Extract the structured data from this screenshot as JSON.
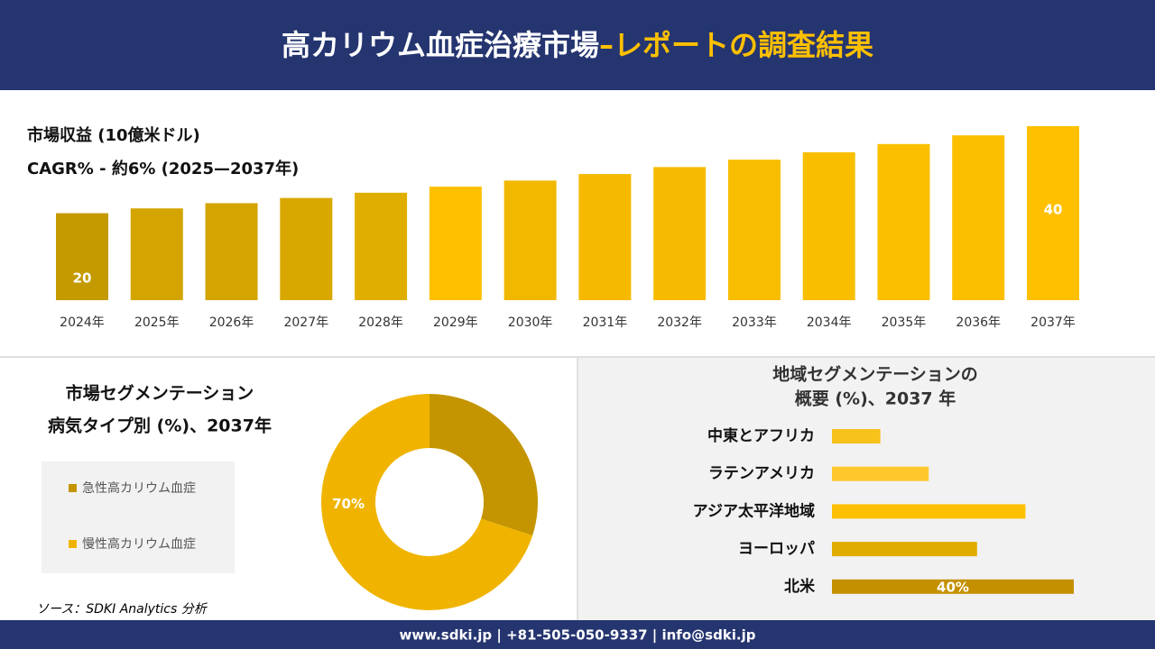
{
  "header": {
    "title_main": "高カリウム血症治療市場",
    "title_accent": "–レポートの調査結果"
  },
  "footer": "www.sdki.jp | +81-505-050-9337 | info@sdki.jp",
  "source": "ソース：SDKI Analytics 分析",
  "chart_data": [
    {
      "type": "bar",
      "title": "市場収益 (10億米ドル)",
      "subtitle": "CAGR% - 約6% (2025—2037年)",
      "categories": [
        "2024年",
        "2025年",
        "2026年",
        "2027年",
        "2028年",
        "2029年",
        "2030年",
        "2031年",
        "2032年",
        "2033年",
        "2034年",
        "2035年",
        "2036年",
        "2037年"
      ],
      "values": [
        20,
        21.1,
        22.3,
        23.5,
        24.7,
        26.1,
        27.5,
        29.0,
        30.6,
        32.3,
        34.0,
        35.9,
        37.9,
        40
      ],
      "value_labels": [
        "20",
        null,
        null,
        null,
        null,
        null,
        null,
        null,
        null,
        null,
        null,
        null,
        null,
        "40"
      ],
      "colors": [
        "#c49a00",
        "#d4a500",
        "#d4a500",
        "#d8a800",
        "#e0ae00",
        "#ffc000",
        "#f2b800",
        "#f4b900",
        "#f6bb00",
        "#f8bd00",
        "#f9be00",
        "#fbbf00",
        "#fcbf00",
        "#ffc000"
      ]
    },
    {
      "type": "donut",
      "title": "市場セグメンテーション",
      "subtitle": "病気タイプ別 (%)、2037年",
      "series": [
        {
          "name": "急性高カリウム血症",
          "color": "#c49500",
          "values": [
            30
          ]
        },
        {
          "name": "慢性高カリウム血症",
          "color": "#f0b400",
          "values": [
            70
          ]
        }
      ],
      "value_labels": [
        null,
        "70%"
      ]
    },
    {
      "type": "barh",
      "title": "地域セグメンテーションの",
      "subtitle": "概要 (%)、2037 年",
      "categories": [
        "中東とアフリカ",
        "ラテンアメリカ",
        "アジア太平洋地域",
        "ヨーロッパ",
        "北米"
      ],
      "values": [
        8,
        16,
        32,
        24,
        40
      ],
      "value_labels": [
        null,
        null,
        null,
        null,
        "40%"
      ],
      "colors": [
        "#f7c21a",
        "#ffc72c",
        "#ffc000",
        "#e0ac00",
        "#c49000"
      ]
    }
  ]
}
